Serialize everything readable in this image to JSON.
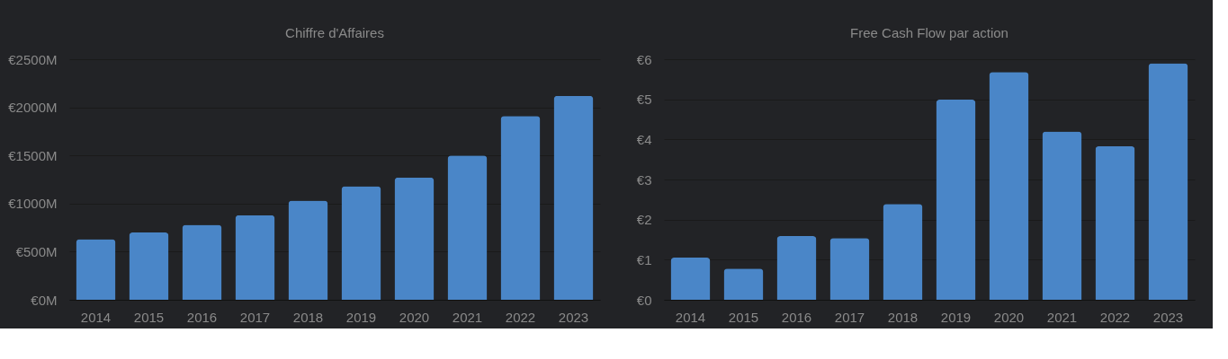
{
  "chart_data": [
    {
      "type": "bar",
      "title": "Chiffre d'Affaires",
      "categories": [
        "2014",
        "2015",
        "2016",
        "2017",
        "2018",
        "2019",
        "2020",
        "2021",
        "2022",
        "2023"
      ],
      "values": [
        630,
        700,
        780,
        880,
        1030,
        1180,
        1270,
        1500,
        1910,
        2120
      ],
      "color": "#4a86c8",
      "ylim": [
        0,
        2500
      ],
      "yticks": [
        {
          "value": 0,
          "label": "€0M"
        },
        {
          "value": 500,
          "label": "€500M"
        },
        {
          "value": 1000,
          "label": "€1000M"
        },
        {
          "value": 1500,
          "label": "€1500M"
        },
        {
          "value": 2000,
          "label": "€2000M"
        },
        {
          "value": 2500,
          "label": "€2500M"
        }
      ],
      "grid": "y"
    },
    {
      "type": "bar",
      "title": "Free Cash Flow par action",
      "categories": [
        "2014",
        "2015",
        "2016",
        "2017",
        "2018",
        "2019",
        "2020",
        "2021",
        "2022",
        "2023"
      ],
      "values": [
        1.05,
        0.78,
        1.59,
        1.54,
        2.39,
        4.99,
        5.68,
        4.2,
        3.83,
        5.9
      ],
      "color": "#4a86c8",
      "ylim": [
        0,
        6
      ],
      "yticks": [
        {
          "value": 0,
          "label": "€0"
        },
        {
          "value": 1,
          "label": "€1"
        },
        {
          "value": 2,
          "label": "€2"
        },
        {
          "value": 3,
          "label": "€3"
        },
        {
          "value": 4,
          "label": "€4"
        },
        {
          "value": 5,
          "label": "€5"
        },
        {
          "value": 6,
          "label": "€6"
        }
      ],
      "grid": "y"
    }
  ]
}
